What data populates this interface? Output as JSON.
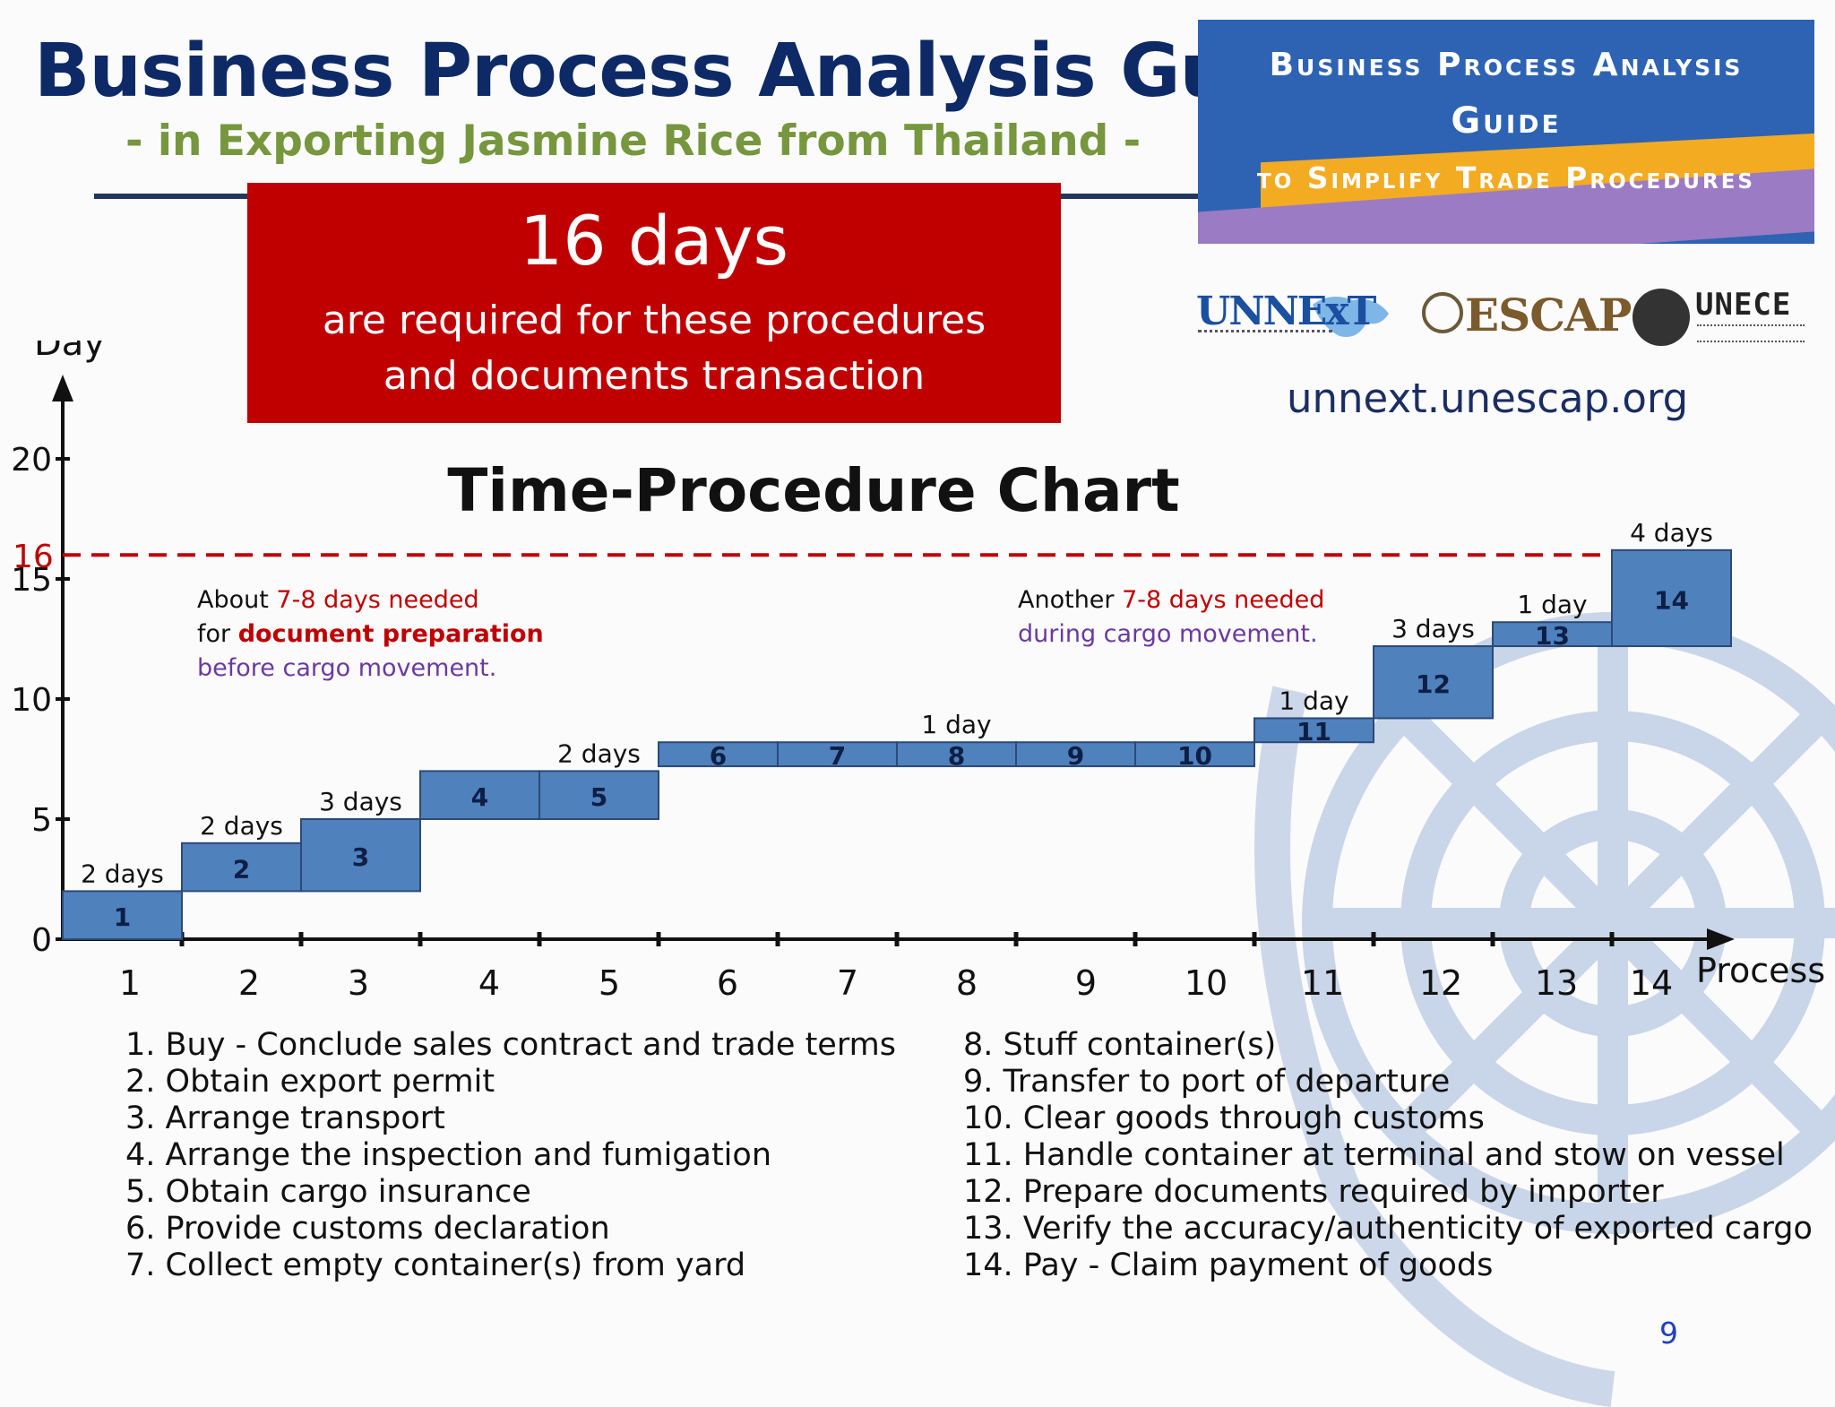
{
  "header": {
    "title": "Business Process Analysis Guide",
    "subtitle": "- in Exporting Jasmine Rice from Thailand -"
  },
  "summary": {
    "days": "16 days",
    "line1": "are required for these procedures",
    "line2": "and documents transaction"
  },
  "banner": {
    "line1": "Business Process Analysis",
    "line2": "Guide",
    "line3": "to Simplify Trade Procedures"
  },
  "logos": {
    "unnext": "UNNExT",
    "escap": "ESCAP",
    "unece": "UNECE"
  },
  "website": "unnext.unescap.org",
  "annotations": {
    "left": {
      "l1a": "About ",
      "l1b": "7-8 days needed",
      "l2a": "for ",
      "l2b": "document preparation",
      "l3": "before cargo movement."
    },
    "right": {
      "l1a": "Another ",
      "l1b": "7-8 days needed",
      "l2": "during cargo movement."
    }
  },
  "colors": {
    "bar_fill": "#4f81bd",
    "bar_stroke": "#2b4a78",
    "accent_red": "#c00000",
    "annotation_purple": "#6a3aa0",
    "title_navy": "#0d2a67",
    "subtitle_green": "#76973d"
  },
  "chart_data": {
    "type": "bar",
    "title": "Time-Procedure Chart",
    "xlabel": "Process",
    "ylabel": "Day",
    "ylim": [
      0,
      22
    ],
    "yticks": [
      0,
      5,
      10,
      15,
      20
    ],
    "xticks": [
      "1",
      "2",
      "3",
      "4",
      "5",
      "6",
      "7",
      "8",
      "9",
      "10",
      "11",
      "12",
      "13",
      "14"
    ],
    "reference_line": {
      "value": 16,
      "label": "16"
    },
    "steps": [
      {
        "id": "1",
        "start": 0,
        "end": 2,
        "label": "2 days"
      },
      {
        "id": "2",
        "start": 2,
        "end": 4,
        "label": "2 days"
      },
      {
        "id": "3",
        "start": 2,
        "end": 5,
        "label": "3 days"
      },
      {
        "id": "4",
        "start": 5,
        "end": 7,
        "label": ""
      },
      {
        "id": "5",
        "start": 5,
        "end": 7,
        "label": "2 days"
      },
      {
        "id": "6",
        "start": 7.2,
        "end": 8.2,
        "label": ""
      },
      {
        "id": "7",
        "start": 7.2,
        "end": 8.2,
        "label": ""
      },
      {
        "id": "8",
        "start": 7.2,
        "end": 8.2,
        "label": "1 day"
      },
      {
        "id": "9",
        "start": 7.2,
        "end": 8.2,
        "label": ""
      },
      {
        "id": "10",
        "start": 7.2,
        "end": 8.2,
        "label": ""
      },
      {
        "id": "11",
        "start": 8.2,
        "end": 9.2,
        "label": "1 day"
      },
      {
        "id": "12",
        "start": 9.2,
        "end": 12.2,
        "label": "3 days"
      },
      {
        "id": "13",
        "start": 12.2,
        "end": 13.2,
        "label": "1 day"
      },
      {
        "id": "14",
        "start": 12.2,
        "end": 16.2,
        "label": "4 days"
      }
    ]
  },
  "legend_left": [
    "1. Buy - Conclude sales contract and trade terms",
    "2. Obtain export permit",
    "3. Arrange transport",
    "4. Arrange the inspection and fumigation",
    "5. Obtain cargo insurance",
    "6. Provide customs declaration",
    "7. Collect empty container(s) from yard"
  ],
  "legend_right": [
    "8. Stuff container(s)",
    "9. Transfer to port of departure",
    "10. Clear goods through customs",
    "11. Handle container at terminal and stow on vessel",
    "12. Prepare documents required by importer",
    "13. Verify the accuracy/authenticity of exported cargo",
    "14. Pay - Claim payment of goods"
  ],
  "page_number": "9"
}
